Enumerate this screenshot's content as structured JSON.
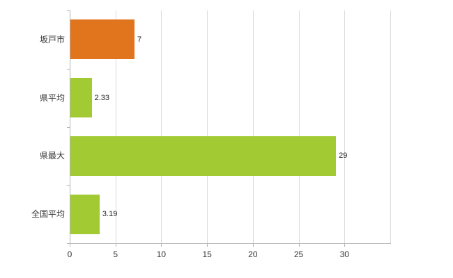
{
  "chart_data": {
    "type": "bar",
    "orientation": "horizontal",
    "title": "",
    "categories": [
      "坂戸市",
      "県平均",
      "県最大",
      "全国平均"
    ],
    "values": [
      7,
      2.33,
      29,
      3.19
    ],
    "value_labels": [
      "7",
      "2.33",
      "29",
      "3.19"
    ],
    "bar_colors": [
      "#e0751e",
      "#a2ca33",
      "#a2ca33",
      "#a2ca33"
    ],
    "x_ticks": [
      0,
      5,
      10,
      15,
      20,
      25,
      30
    ],
    "gridline_values": [
      0,
      5,
      10,
      15,
      20,
      25,
      30,
      35
    ],
    "xlim": [
      0,
      35
    ],
    "grid": true,
    "legend": "none",
    "colors": {
      "axis": "#b3b3b3",
      "grid": "#dcdcdc",
      "category_text": "#333333",
      "value_text": "#222222",
      "tick_text": "#333333",
      "background": "#ffffff"
    }
  }
}
